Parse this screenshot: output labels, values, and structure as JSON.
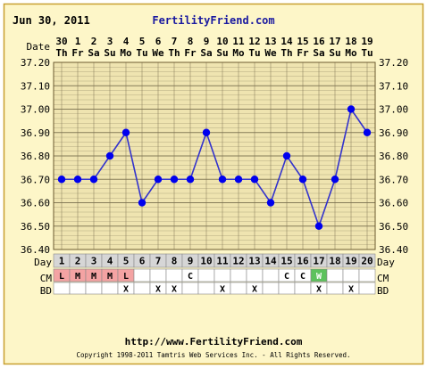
{
  "header": {
    "date": "Jun 30, 2011",
    "site": "FertilityFriend.com"
  },
  "footer": {
    "url": "http://www.FertilityFriend.com",
    "copyright": "Copyright 1998-2011 Tamtris Web Services Inc. - All Rights Reserved."
  },
  "row_labels": {
    "date": "Date",
    "day": "Day",
    "cm": "CM",
    "bd": "BD"
  },
  "chart_data": {
    "type": "line",
    "title": "",
    "x": [
      "1",
      "2",
      "3",
      "4",
      "5",
      "6",
      "7",
      "8",
      "9",
      "10",
      "11",
      "12",
      "13",
      "14",
      "15",
      "16",
      "17",
      "18",
      "19",
      "20"
    ],
    "dates": [
      "30",
      "1",
      "2",
      "3",
      "4",
      "5",
      "6",
      "7",
      "8",
      "9",
      "10",
      "11",
      "12",
      "13",
      "14",
      "15",
      "16",
      "17",
      "18",
      "19"
    ],
    "weekdays": [
      "Th",
      "Fr",
      "Sa",
      "Su",
      "Mo",
      "Tu",
      "We",
      "Th",
      "Fr",
      "Sa",
      "Su",
      "Mo",
      "Tu",
      "We",
      "Th",
      "Fr",
      "Sa",
      "Su",
      "Mo",
      "Tu"
    ],
    "series": [
      {
        "values": [
          36.7,
          36.7,
          36.7,
          36.8,
          36.9,
          36.6,
          36.7,
          36.7,
          36.7,
          36.9,
          36.7,
          36.7,
          36.7,
          36.6,
          36.8,
          36.7,
          36.5,
          36.7,
          37.0,
          36.9
        ]
      }
    ],
    "ylim": [
      36.4,
      37.2
    ],
    "yticks": [
      "36.40",
      "36.50",
      "36.60",
      "36.70",
      "36.80",
      "36.90",
      "37.00",
      "37.10",
      "37.20"
    ],
    "cm": [
      "L",
      "M",
      "M",
      "M",
      "L",
      "",
      "",
      "",
      "C",
      "",
      "",
      "",
      "",
      "",
      "C",
      "C",
      "W",
      "",
      "",
      ""
    ],
    "bd": [
      "",
      "",
      "",
      "",
      "X",
      "",
      "X",
      "X",
      "",
      "",
      "X",
      "",
      "X",
      "",
      "",
      "",
      "X",
      "",
      "X",
      ""
    ],
    "colors": {
      "plot_bg": "#efe4b0",
      "grid": "#7a7050",
      "line": "#3333cc",
      "point": "#0000ee",
      "menses": "#f4a3a3",
      "fertile": "#5cc25c",
      "day_row_bg": "#d6d6d6",
      "frame_bg": "#fdf6c8",
      "border": "#c8a030"
    },
    "grid": true
  }
}
